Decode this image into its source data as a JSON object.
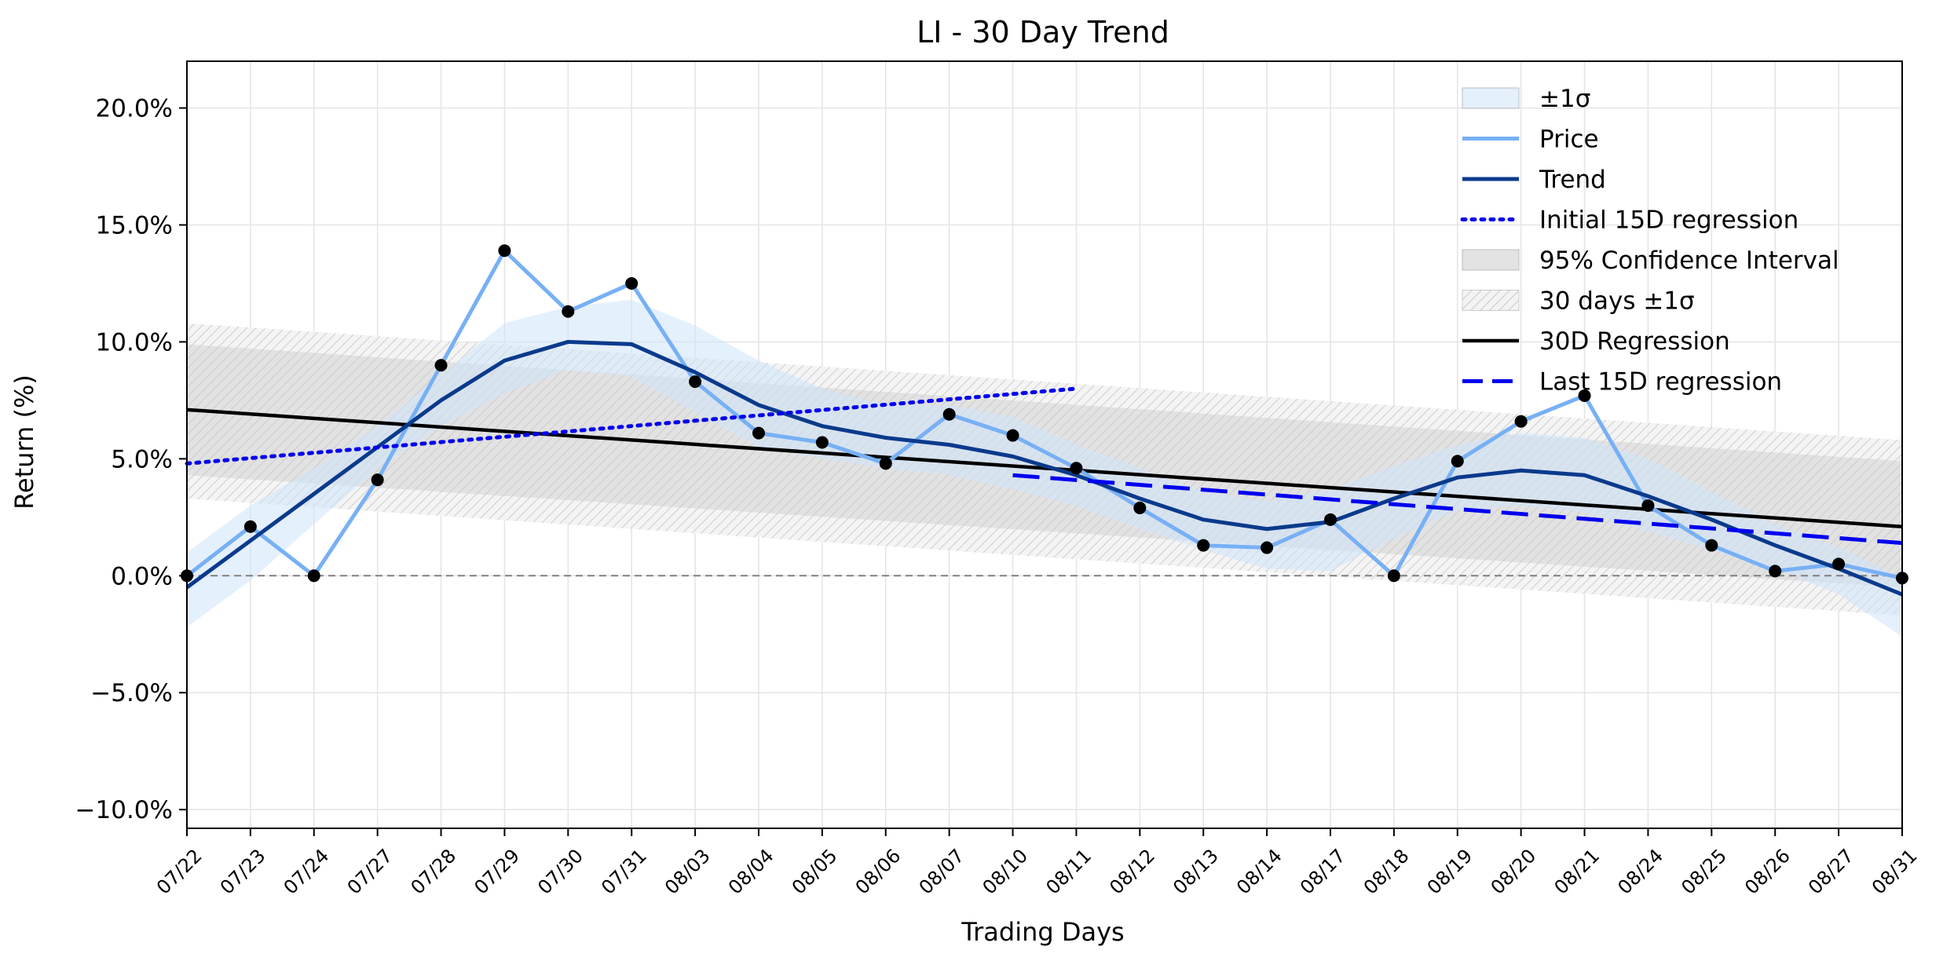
{
  "chart_data": {
    "type": "line",
    "title": "LI - 30 Day Trend",
    "xlabel": "Trading Days",
    "ylabel": "Return (%)",
    "ylim": [
      -10.8,
      22.0
    ],
    "yticks": [
      -10,
      -5,
      0,
      5,
      10,
      15,
      20
    ],
    "ytick_labels": [
      "−10.0%",
      "−5.0%",
      "0.0%",
      "5.0%",
      "10.0%",
      "15.0%",
      "20.0%"
    ],
    "grid": true,
    "legend_position": "top-right",
    "categories": [
      "07/22",
      "07/23",
      "07/24",
      "07/27",
      "07/28",
      "07/29",
      "07/30",
      "07/31",
      "08/03",
      "08/04",
      "08/05",
      "08/06",
      "08/07",
      "08/10",
      "08/11",
      "08/12",
      "08/13",
      "08/14",
      "08/17",
      "08/18",
      "08/19",
      "08/20",
      "08/21",
      "08/24",
      "08/25",
      "08/26",
      "08/27",
      "08/31"
    ],
    "series": [
      {
        "name": "Price",
        "color": "#77b0f5",
        "values": [
          0.0,
          2.1,
          0.0,
          4.1,
          9.0,
          13.9,
          11.3,
          12.5,
          8.3,
          6.1,
          5.7,
          4.8,
          6.9,
          6.0,
          4.6,
          2.9,
          1.3,
          1.2,
          2.4,
          0.0,
          4.9,
          6.6,
          7.7,
          3.0,
          1.3,
          0.2,
          0.5,
          -0.1
        ]
      },
      {
        "name": "Trend",
        "color": "#0a3a8c",
        "values": [
          -0.5,
          1.5,
          3.5,
          5.5,
          7.5,
          9.2,
          10.0,
          9.9,
          8.7,
          7.3,
          6.4,
          5.9,
          5.6,
          5.1,
          4.3,
          3.3,
          2.4,
          2.0,
          2.3,
          3.3,
          4.2,
          4.5,
          4.3,
          3.4,
          2.4,
          1.3,
          0.3,
          -0.8
        ]
      },
      {
        "name": "±1σ",
        "color": "#dcecfc",
        "upper": [
          1.0,
          3.0,
          4.6,
          6.4,
          8.6,
          10.8,
          11.5,
          11.8,
          10.7,
          9.2,
          8.0,
          7.3,
          7.3,
          6.8,
          5.6,
          4.6,
          3.6,
          3.2,
          3.7,
          4.7,
          5.6,
          6.1,
          5.9,
          5.0,
          3.6,
          2.2,
          1.2,
          -0.1
        ],
        "lower": [
          -2.2,
          -0.2,
          2.2,
          4.6,
          6.4,
          7.8,
          8.8,
          8.5,
          7.0,
          5.5,
          5.0,
          4.6,
          4.3,
          3.7,
          3.0,
          2.0,
          1.1,
          0.3,
          0.2,
          1.6,
          2.8,
          3.0,
          2.7,
          1.9,
          1.1,
          0.3,
          -0.8,
          -2.6
        ]
      },
      {
        "name": "Initial 15D regression",
        "color": "#0000ee",
        "x": [
          "07/22",
          "08/11"
        ],
        "values": [
          4.8,
          8.0
        ]
      },
      {
        "name": "95% Confidence Interval",
        "color": "#dcdcdc",
        "x": [
          "07/22",
          "08/31"
        ],
        "upper": [
          9.9,
          4.9
        ],
        "lower": [
          4.3,
          -0.5
        ]
      },
      {
        "name": "30 days ±1σ",
        "color": "#f0f0f0",
        "x": [
          "07/22",
          "08/31"
        ],
        "upper": [
          10.8,
          5.8
        ],
        "lower": [
          3.3,
          -1.7
        ]
      },
      {
        "name": "30D Regression",
        "color": "#000000",
        "x": [
          "07/22",
          "08/31"
        ],
        "values": [
          7.1,
          2.1
        ]
      },
      {
        "name": "Last 15D regression",
        "color": "#0000ee",
        "x": [
          "08/10",
          "08/31"
        ],
        "values": [
          4.3,
          1.4
        ]
      }
    ],
    "reference_line": {
      "y": 0,
      "color": "#808080"
    }
  }
}
